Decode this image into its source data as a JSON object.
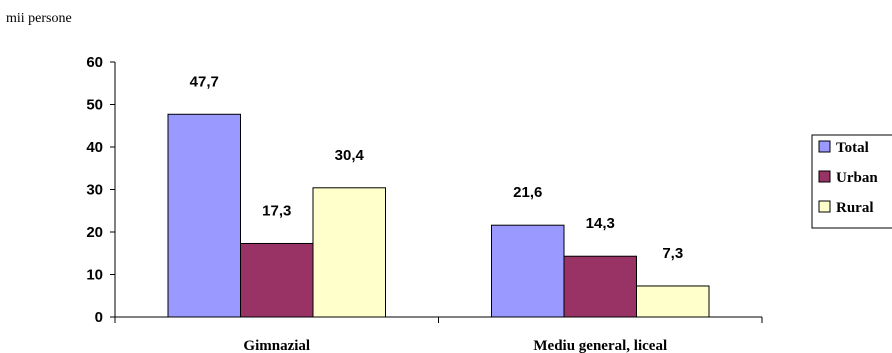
{
  "chart_data": {
    "type": "bar",
    "unit_label": "mii persone",
    "categories": [
      "Gimnazial",
      "Mediu general, liceal"
    ],
    "series": [
      {
        "name": "Total",
        "values": [
          47.7,
          21.6
        ],
        "labels": [
          "47,7",
          "21,6"
        ],
        "color": "#9999ff"
      },
      {
        "name": "Urban",
        "values": [
          17.3,
          14.3
        ],
        "labels": [
          "17,3",
          "14,3"
        ],
        "color": "#993366"
      },
      {
        "name": "Rural",
        "values": [
          30.4,
          7.3
        ],
        "labels": [
          "30,4",
          "7,3"
        ],
        "color": "#ffffcc"
      }
    ],
    "ylim": [
      0,
      60
    ],
    "yticks": [
      0,
      10,
      20,
      30,
      40,
      50,
      60
    ],
    "grid": false,
    "legend_position": "right"
  }
}
